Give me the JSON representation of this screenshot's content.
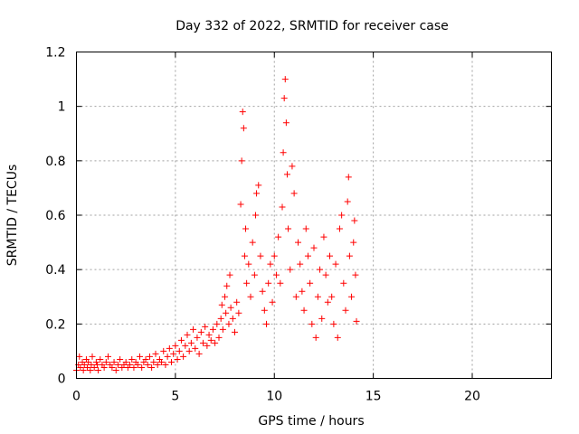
{
  "chart_data": {
    "type": "scatter",
    "title": "Day 332 of 2022, SRMTID for receiver case",
    "xlabel": "GPS time / hours",
    "ylabel": "SRMTID / TECUs",
    "xlim": [
      0,
      24
    ],
    "ylim": [
      0,
      1.2
    ],
    "xticks": [
      0,
      5,
      10,
      15,
      20
    ],
    "xtick_labels": [
      "0",
      "5",
      "10",
      "15",
      "20"
    ],
    "yticks": [
      0,
      0.2,
      0.4,
      0.6,
      0.8,
      1,
      1.2
    ],
    "ytick_labels": [
      "0",
      "0.2",
      "0.4",
      "0.6",
      "0.8",
      "1",
      "1.2"
    ],
    "grid": true,
    "marker": "+",
    "series": [
      {
        "name": "SRMTID",
        "color": "#ff0000",
        "points": [
          [
            0.0,
            0.03
          ],
          [
            0.1,
            0.05
          ],
          [
            0.15,
            0.08
          ],
          [
            0.2,
            0.04
          ],
          [
            0.3,
            0.06
          ],
          [
            0.35,
            0.03
          ],
          [
            0.4,
            0.05
          ],
          [
            0.5,
            0.07
          ],
          [
            0.55,
            0.04
          ],
          [
            0.6,
            0.06
          ],
          [
            0.7,
            0.03
          ],
          [
            0.75,
            0.05
          ],
          [
            0.8,
            0.08
          ],
          [
            0.9,
            0.04
          ],
          [
            1.0,
            0.06
          ],
          [
            1.05,
            0.05
          ],
          [
            1.1,
            0.03
          ],
          [
            1.2,
            0.07
          ],
          [
            1.3,
            0.05
          ],
          [
            1.4,
            0.04
          ],
          [
            1.5,
            0.06
          ],
          [
            1.6,
            0.08
          ],
          [
            1.7,
            0.05
          ],
          [
            1.8,
            0.04
          ],
          [
            1.9,
            0.06
          ],
          [
            2.0,
            0.03
          ],
          [
            2.1,
            0.05
          ],
          [
            2.2,
            0.07
          ],
          [
            2.3,
            0.04
          ],
          [
            2.4,
            0.05
          ],
          [
            2.5,
            0.06
          ],
          [
            2.6,
            0.04
          ],
          [
            2.7,
            0.05
          ],
          [
            2.8,
            0.07
          ],
          [
            2.9,
            0.04
          ],
          [
            3.0,
            0.06
          ],
          [
            3.1,
            0.05
          ],
          [
            3.2,
            0.08
          ],
          [
            3.3,
            0.04
          ],
          [
            3.4,
            0.06
          ],
          [
            3.5,
            0.07
          ],
          [
            3.6,
            0.05
          ],
          [
            3.7,
            0.08
          ],
          [
            3.8,
            0.04
          ],
          [
            3.9,
            0.06
          ],
          [
            4.0,
            0.09
          ],
          [
            4.1,
            0.05
          ],
          [
            4.2,
            0.07
          ],
          [
            4.3,
            0.06
          ],
          [
            4.4,
            0.1
          ],
          [
            4.5,
            0.05
          ],
          [
            4.6,
            0.08
          ],
          [
            4.7,
            0.11
          ],
          [
            4.8,
            0.06
          ],
          [
            4.9,
            0.09
          ],
          [
            5.0,
            0.12
          ],
          [
            5.1,
            0.07
          ],
          [
            5.2,
            0.1
          ],
          [
            5.3,
            0.14
          ],
          [
            5.4,
            0.08
          ],
          [
            5.5,
            0.12
          ],
          [
            5.6,
            0.16
          ],
          [
            5.7,
            0.1
          ],
          [
            5.8,
            0.13
          ],
          [
            5.9,
            0.18
          ],
          [
            6.0,
            0.11
          ],
          [
            6.1,
            0.15
          ],
          [
            6.2,
            0.09
          ],
          [
            6.3,
            0.17
          ],
          [
            6.4,
            0.13
          ],
          [
            6.5,
            0.19
          ],
          [
            6.6,
            0.12
          ],
          [
            6.7,
            0.16
          ],
          [
            6.8,
            0.14
          ],
          [
            6.9,
            0.18
          ],
          [
            7.0,
            0.13
          ],
          [
            7.1,
            0.2
          ],
          [
            7.2,
            0.15
          ],
          [
            7.3,
            0.22
          ],
          [
            7.35,
            0.27
          ],
          [
            7.4,
            0.18
          ],
          [
            7.5,
            0.3
          ],
          [
            7.55,
            0.24
          ],
          [
            7.6,
            0.34
          ],
          [
            7.7,
            0.2
          ],
          [
            7.75,
            0.38
          ],
          [
            7.8,
            0.26
          ],
          [
            7.9,
            0.22
          ],
          [
            8.0,
            0.17
          ],
          [
            8.1,
            0.28
          ],
          [
            8.2,
            0.24
          ],
          [
            8.3,
            0.64
          ],
          [
            8.35,
            0.8
          ],
          [
            8.4,
            0.98
          ],
          [
            8.45,
            0.92
          ],
          [
            8.5,
            0.45
          ],
          [
            8.55,
            0.55
          ],
          [
            8.6,
            0.35
          ],
          [
            8.7,
            0.42
          ],
          [
            8.8,
            0.3
          ],
          [
            8.9,
            0.5
          ],
          [
            9.0,
            0.38
          ],
          [
            9.05,
            0.6
          ],
          [
            9.1,
            0.68
          ],
          [
            9.2,
            0.71
          ],
          [
            9.3,
            0.45
          ],
          [
            9.4,
            0.32
          ],
          [
            9.5,
            0.25
          ],
          [
            9.6,
            0.2
          ],
          [
            9.7,
            0.35
          ],
          [
            9.8,
            0.42
          ],
          [
            9.9,
            0.28
          ],
          [
            10.0,
            0.45
          ],
          [
            10.1,
            0.38
          ],
          [
            10.2,
            0.52
          ],
          [
            10.3,
            0.35
          ],
          [
            10.4,
            0.63
          ],
          [
            10.45,
            0.83
          ],
          [
            10.5,
            1.03
          ],
          [
            10.55,
            1.1
          ],
          [
            10.6,
            0.94
          ],
          [
            10.65,
            0.75
          ],
          [
            10.7,
            0.55
          ],
          [
            10.8,
            0.4
          ],
          [
            10.9,
            0.78
          ],
          [
            11.0,
            0.68
          ],
          [
            11.1,
            0.3
          ],
          [
            11.2,
            0.5
          ],
          [
            11.3,
            0.42
          ],
          [
            11.4,
            0.32
          ],
          [
            11.5,
            0.25
          ],
          [
            11.6,
            0.55
          ],
          [
            11.7,
            0.45
          ],
          [
            11.8,
            0.35
          ],
          [
            11.9,
            0.2
          ],
          [
            12.0,
            0.48
          ],
          [
            12.1,
            0.15
          ],
          [
            12.2,
            0.3
          ],
          [
            12.3,
            0.4
          ],
          [
            12.4,
            0.22
          ],
          [
            12.5,
            0.52
          ],
          [
            12.6,
            0.38
          ],
          [
            12.7,
            0.28
          ],
          [
            12.8,
            0.45
          ],
          [
            12.9,
            0.3
          ],
          [
            13.0,
            0.2
          ],
          [
            13.1,
            0.42
          ],
          [
            13.2,
            0.15
          ],
          [
            13.3,
            0.55
          ],
          [
            13.4,
            0.6
          ],
          [
            13.5,
            0.35
          ],
          [
            13.6,
            0.25
          ],
          [
            13.7,
            0.65
          ],
          [
            13.75,
            0.74
          ],
          [
            13.8,
            0.45
          ],
          [
            13.9,
            0.3
          ],
          [
            14.0,
            0.5
          ],
          [
            14.05,
            0.58
          ],
          [
            14.1,
            0.38
          ],
          [
            14.15,
            0.21
          ]
        ]
      }
    ]
  }
}
